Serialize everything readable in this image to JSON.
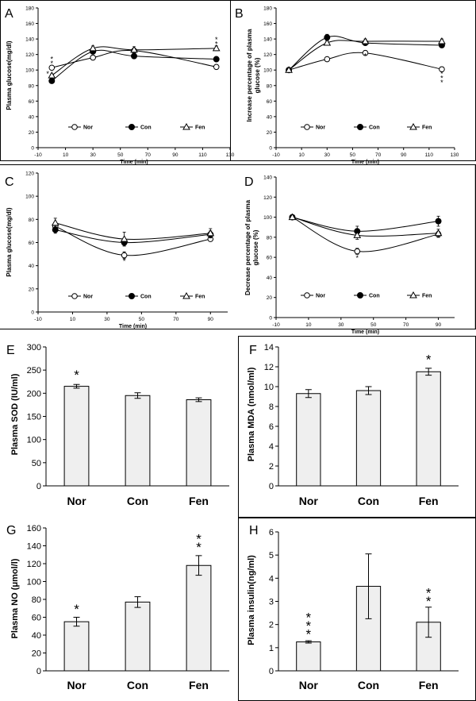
{
  "legend_labels": [
    "Nor",
    "Con",
    "Fen"
  ],
  "chart_data": [
    {
      "id": "A",
      "type": "line",
      "panel_label": "A",
      "title": "",
      "xlabel": "Time (min)",
      "ylabel": "Plasma glucose(mg/dl)",
      "xlim": [
        -10,
        130
      ],
      "xticks": [
        -10,
        10,
        30,
        50,
        70,
        90,
        110,
        130
      ],
      "ylim": [
        0,
        180
      ],
      "yticks": [
        0,
        20,
        40,
        60,
        80,
        100,
        120,
        140,
        160,
        180
      ],
      "x": [
        0,
        30,
        60,
        120
      ],
      "series": [
        {
          "name": "Nor",
          "marker": "open-circle",
          "values": [
            103,
            116,
            125,
            104
          ],
          "errors": [
            2,
            2,
            2,
            2
          ]
        },
        {
          "name": "Con",
          "marker": "filled-circle",
          "values": [
            86,
            124,
            118,
            114
          ],
          "errors": [
            2,
            3,
            3,
            2
          ]
        },
        {
          "name": "Fen",
          "marker": "open-triangle",
          "values": [
            93,
            128,
            126,
            128
          ],
          "errors": [
            2,
            3,
            4,
            3
          ]
        }
      ],
      "annotations": [
        {
          "text": "* *",
          "x": 0,
          "y": 111,
          "vertical": true
        },
        {
          "text": "*",
          "x": -3,
          "y": 92
        },
        {
          "text": "* *",
          "x": 120,
          "y": 136,
          "vertical": true
        }
      ]
    },
    {
      "id": "B",
      "type": "line",
      "panel_label": "B",
      "title": "",
      "xlabel": "Time (min)",
      "ylabel": "Increase percentage of plasma glucose (%)",
      "xlim": [
        -10,
        130
      ],
      "xticks": [
        -10,
        10,
        30,
        50,
        70,
        90,
        110,
        130
      ],
      "ylim": [
        0,
        180
      ],
      "yticks": [
        0,
        20,
        40,
        60,
        80,
        100,
        120,
        140,
        160,
        180
      ],
      "x": [
        0,
        30,
        60,
        120
      ],
      "series": [
        {
          "name": "Nor",
          "marker": "open-circle",
          "values": [
            100,
            114,
            122,
            101
          ],
          "errors": [
            1,
            2,
            3,
            3
          ]
        },
        {
          "name": "Con",
          "marker": "filled-circle",
          "values": [
            100,
            142,
            135,
            132
          ],
          "errors": [
            1,
            4,
            3,
            3
          ]
        },
        {
          "name": "Fen",
          "marker": "open-triangle",
          "values": [
            100,
            135,
            137,
            137
          ],
          "errors": [
            1,
            3,
            3,
            3
          ]
        }
      ],
      "annotations": [
        {
          "text": "*",
          "x": 60,
          "y": 115
        },
        {
          "text": "* * *",
          "x": 120,
          "y": 92,
          "vertical": true
        }
      ]
    },
    {
      "id": "C",
      "type": "line",
      "panel_label": "C",
      "title": "",
      "xlabel": "Time (min)",
      "ylabel": "Plasma glucose(mg/dl)",
      "xlim": [
        -10,
        100
      ],
      "xticks": [
        -10,
        10,
        30,
        50,
        70,
        90
      ],
      "ylim": [
        0,
        120
      ],
      "yticks": [
        0,
        20,
        40,
        60,
        80,
        100,
        120
      ],
      "x": [
        0,
        40,
        90
      ],
      "series": [
        {
          "name": "Nor",
          "marker": "open-circle",
          "values": [
            74,
            49,
            63
          ],
          "errors": [
            3,
            3,
            2
          ]
        },
        {
          "name": "Con",
          "marker": "filled-circle",
          "values": [
            71,
            60,
            67
          ],
          "errors": [
            3,
            3,
            3
          ]
        },
        {
          "name": "Fen",
          "marker": "open-triangle",
          "values": [
            77,
            63,
            68
          ],
          "errors": [
            4,
            6,
            4
          ]
        }
      ],
      "annotations": [
        {
          "text": "*",
          "x": 40,
          "y": 42
        }
      ]
    },
    {
      "id": "D",
      "type": "line",
      "panel_label": "D",
      "title": "",
      "xlabel": "Time (min)",
      "ylabel": "Decrease percentage of plasma glucose (%)",
      "xlim": [
        -10,
        100
      ],
      "xticks": [
        -10,
        10,
        30,
        50,
        70,
        90
      ],
      "ylim": [
        0,
        140
      ],
      "yticks": [
        0,
        20,
        40,
        60,
        80,
        100,
        120,
        140
      ],
      "x": [
        0,
        40,
        90
      ],
      "series": [
        {
          "name": "Nor",
          "marker": "open-circle",
          "values": [
            100,
            66,
            83
          ],
          "errors": [
            2,
            3,
            3
          ]
        },
        {
          "name": "Con",
          "marker": "filled-circle",
          "values": [
            100,
            86,
            96
          ],
          "errors": [
            2,
            5,
            5
          ]
        },
        {
          "name": "Fen",
          "marker": "open-triangle",
          "values": [
            100,
            82,
            84
          ],
          "errors": [
            2,
            4,
            4
          ]
        }
      ],
      "annotations": [
        {
          "text": "*",
          "x": 40,
          "y": 57
        }
      ]
    },
    {
      "id": "E",
      "type": "bar",
      "panel_label": "E",
      "title": "",
      "xlabel": "",
      "ylabel": "Plasma SOD (IU/ml)",
      "categories": [
        "Nor",
        "Con",
        "Fen"
      ],
      "values": [
        215,
        195,
        186
      ],
      "errors": [
        4,
        6,
        4
      ],
      "ylim": [
        0,
        300
      ],
      "yticks": [
        0,
        50,
        100,
        150,
        200,
        250,
        300
      ],
      "annotations": [
        {
          "text": "*",
          "category": "Nor",
          "y": 230
        }
      ]
    },
    {
      "id": "F",
      "type": "bar",
      "panel_label": "F",
      "title": "",
      "xlabel": "",
      "ylabel": "Plasma MDA (nmol/ml)",
      "categories": [
        "Nor",
        "Con",
        "Fen"
      ],
      "values": [
        9.3,
        9.6,
        11.5
      ],
      "errors": [
        0.4,
        0.4,
        0.35
      ],
      "ylim": [
        0,
        14
      ],
      "yticks": [
        0,
        2,
        4,
        6,
        8,
        10,
        12,
        14
      ],
      "annotations": [
        {
          "text": "*",
          "category": "Fen",
          "y": 12.3
        }
      ]
    },
    {
      "id": "G",
      "type": "bar",
      "panel_label": "G",
      "title": "",
      "xlabel": "",
      "ylabel": "Plasma NO (μmol/l)",
      "categories": [
        "Nor",
        "Con",
        "Fen"
      ],
      "values": [
        55,
        77,
        118
      ],
      "errors": [
        5,
        6,
        11
      ],
      "ylim": [
        0,
        160
      ],
      "yticks": [
        0,
        20,
        40,
        60,
        80,
        100,
        120,
        140,
        160
      ],
      "annotations": [
        {
          "text": "*",
          "category": "Nor",
          "y": 64
        },
        {
          "text": "* *",
          "category": "Fen",
          "y": 133,
          "vertical": true
        }
      ]
    },
    {
      "id": "H",
      "type": "bar",
      "panel_label": "H",
      "title": "",
      "xlabel": "",
      "ylabel": "Plasma insulin(ng/ml)",
      "categories": [
        "Nor",
        "Con",
        "Fen"
      ],
      "values": [
        1.25,
        3.65,
        2.1
      ],
      "errors": [
        0.05,
        1.4,
        0.65
      ],
      "ylim": [
        0,
        6
      ],
      "yticks": [
        0,
        1,
        2,
        3,
        4,
        5,
        6
      ],
      "annotations": [
        {
          "text": "* * *",
          "category": "Nor",
          "y": 1.35,
          "vertical": true
        },
        {
          "text": "* *",
          "category": "Fen",
          "y": 2.8,
          "vertical": true
        }
      ]
    }
  ]
}
